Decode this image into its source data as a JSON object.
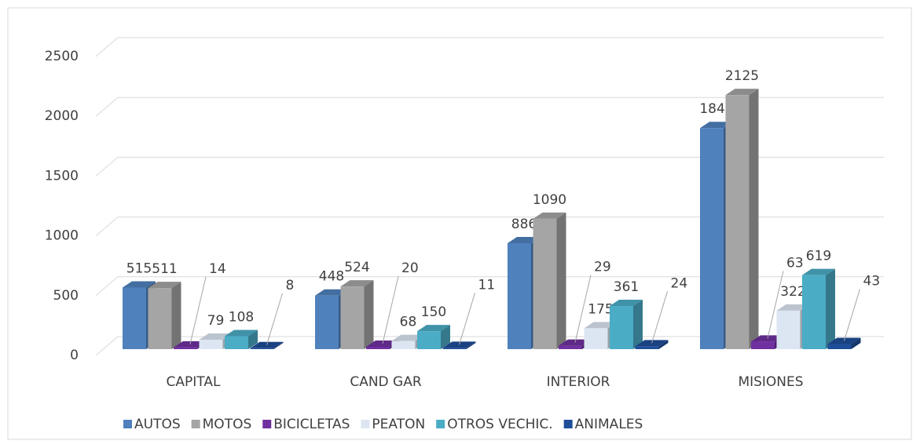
{
  "chart_data": {
    "type": "bar3d",
    "categories": [
      "CAPITAL",
      "CAND  GAR",
      "INTERIOR",
      "MISIONES"
    ],
    "series": [
      {
        "name": "AUTOS",
        "color": "#4f81bd",
        "values": [
          515,
          448,
          886,
          1849
        ]
      },
      {
        "name": "MOTOS",
        "color": "#a5a5a5",
        "values": [
          511,
          524,
          1090,
          2125
        ]
      },
      {
        "name": "BICICLETAS",
        "color": "#7030a0",
        "values": [
          14,
          20,
          29,
          63
        ]
      },
      {
        "name": "PEATON",
        "color": "#dce6f2",
        "values": [
          79,
          68,
          175,
          322
        ]
      },
      {
        "name": "OTROS VECHIC.",
        "color": "#4bacc6",
        "values": [
          108,
          150,
          361,
          619
        ]
      },
      {
        "name": "ANIMALES",
        "color": "#1f4e99",
        "values": [
          8,
          11,
          24,
          43
        ]
      }
    ],
    "ylim": [
      0,
      2500
    ],
    "yticks": [
      0,
      500,
      1000,
      1500,
      2000,
      2500
    ],
    "grid": true,
    "legend": "bottom"
  }
}
